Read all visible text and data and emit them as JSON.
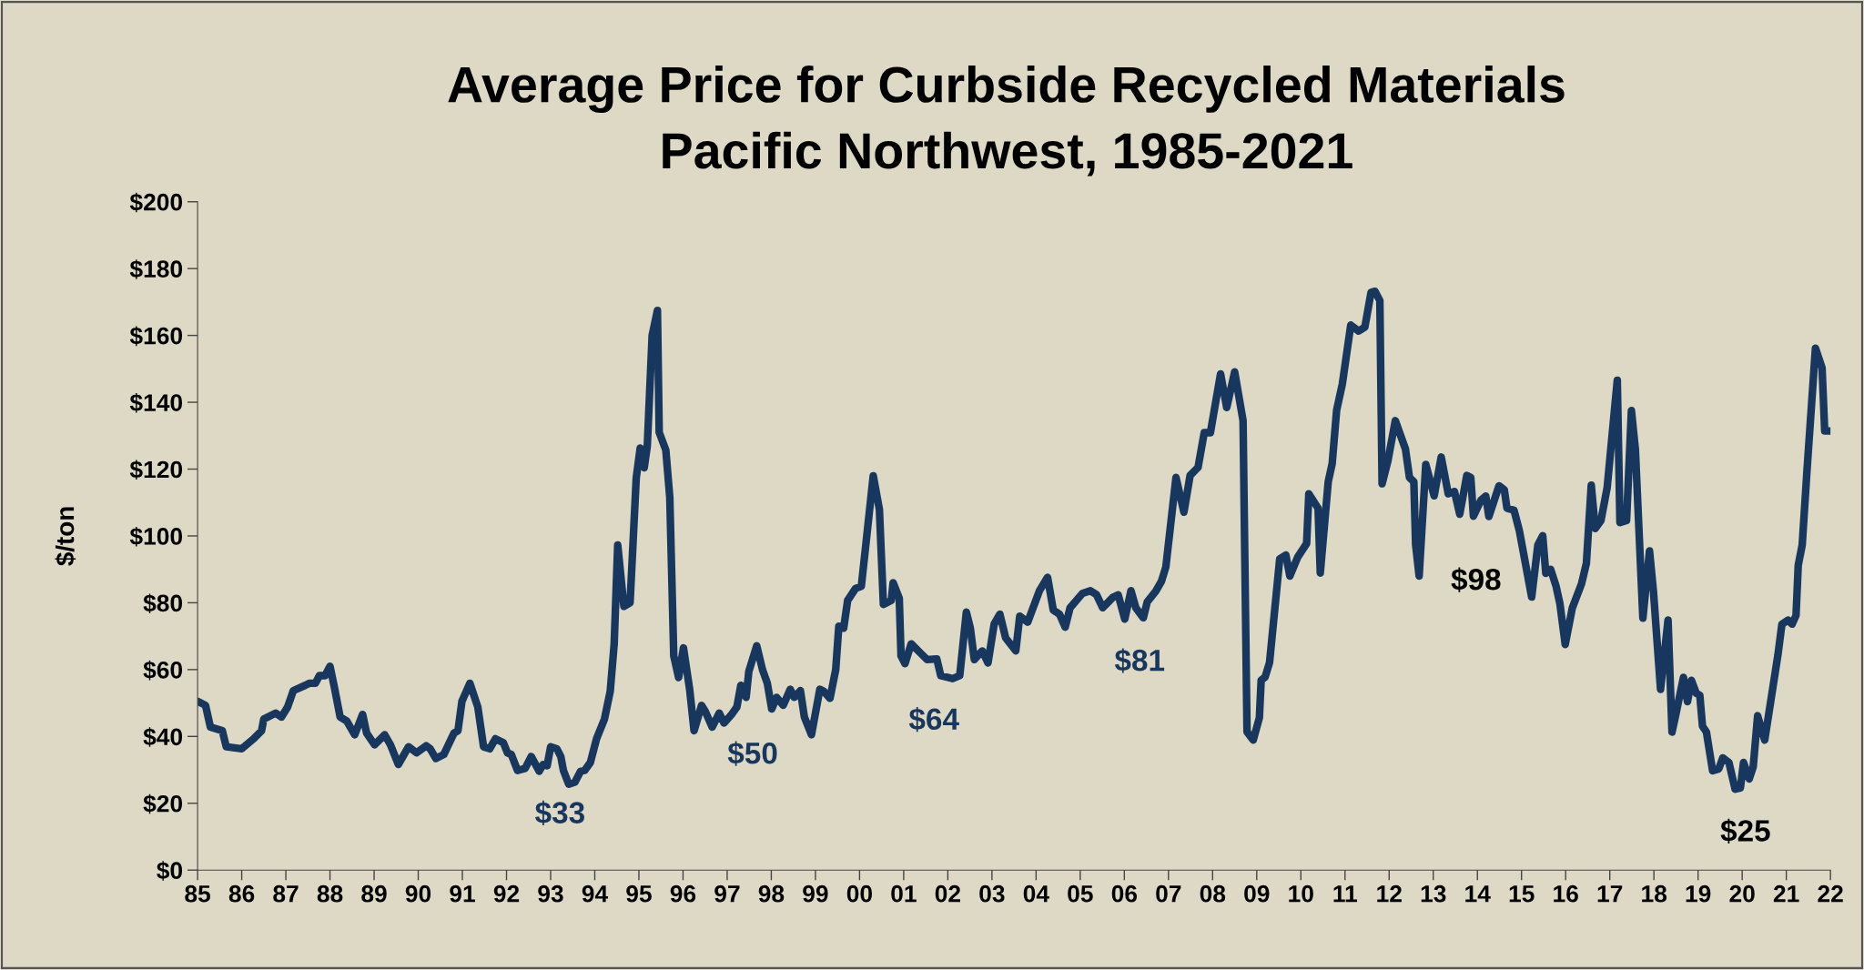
{
  "chart_data": {
    "type": "line",
    "title": "Average Price for Curbside Recycled Materials",
    "subtitle": "Pacific Northwest, 1985-2021",
    "ylabel": "$/ton",
    "annotations": [
      "$33",
      "$50",
      "$64",
      "$81",
      "$98",
      "$25"
    ],
    "series": [
      {
        "color": "#17375e",
        "x": [
          1985.0,
          1985.18,
          1985.29,
          1985.56,
          1985.65,
          1986.0,
          1986.27,
          1986.45,
          1986.5,
          1986.77,
          1986.9,
          1987.04,
          1987.17,
          1987.44,
          1987.53,
          1987.67,
          1987.76,
          1987.89,
          1988.0,
          1988.1,
          1988.23,
          1988.38,
          1988.56,
          1988.74,
          1988.83,
          1989.01,
          1989.24,
          1989.37,
          1989.55,
          1989.78,
          1989.96,
          1990.18,
          1990.27,
          1990.4,
          1990.58,
          1990.81,
          1990.9,
          1990.99,
          1991.17,
          1991.35,
          1991.48,
          1991.62,
          1991.75,
          1991.93,
          1992.02,
          1992.11,
          1992.25,
          1992.42,
          1992.56,
          1992.74,
          1992.83,
          1992.92,
          1993.0,
          1993.14,
          1993.23,
          1993.29,
          1993.41,
          1993.55,
          1993.68,
          1993.77,
          1993.9,
          1994.04,
          1994.22,
          1994.35,
          1994.44,
          1994.52,
          1994.66,
          1994.8,
          1994.94,
          1995.03,
          1995.12,
          1995.19,
          1995.3,
          1995.42,
          1995.46,
          1995.61,
          1995.7,
          1995.79,
          1995.9,
          1996.01,
          1996.15,
          1996.25,
          1996.42,
          1996.5,
          1996.66,
          1996.82,
          1996.93,
          1997.09,
          1997.22,
          1997.31,
          1997.43,
          1997.49,
          1997.67,
          1997.8,
          1997.91,
          1998.01,
          1998.12,
          1998.27,
          1998.43,
          1998.52,
          1998.66,
          1998.75,
          1998.91,
          1999.1,
          1999.19,
          1999.33,
          1999.46,
          1999.53,
          1999.64,
          1999.73,
          1999.91,
          2000.04,
          2000.18,
          2000.31,
          2000.45,
          2000.54,
          2000.72,
          2000.76,
          2000.9,
          2000.94,
          2001.03,
          2001.17,
          2001.4,
          2001.53,
          2001.75,
          2001.84,
          2002.11,
          2002.27,
          2002.42,
          2002.51,
          2002.6,
          2002.78,
          2002.91,
          2003.05,
          2003.18,
          2003.31,
          2003.54,
          2003.63,
          2003.81,
          2004.08,
          2004.26,
          2004.39,
          2004.53,
          2004.66,
          2004.77,
          2005.05,
          2005.23,
          2005.37,
          2005.51,
          2005.74,
          2005.86,
          2006.01,
          2006.15,
          2006.26,
          2006.43,
          2006.52,
          2006.71,
          2006.84,
          2006.94,
          2007.17,
          2007.35,
          2007.49,
          2007.67,
          2007.81,
          2007.95,
          2008.18,
          2008.32,
          2008.5,
          2008.69,
          2008.78,
          2008.92,
          2009.06,
          2009.1,
          2009.19,
          2009.29,
          2009.52,
          2009.66,
          2009.75,
          2009.93,
          2010.13,
          2010.18,
          2010.39,
          2010.44,
          2010.62,
          2010.71,
          2010.81,
          2010.94,
          2011.13,
          2011.31,
          2011.45,
          2011.59,
          2011.68,
          2011.79,
          2011.84,
          2011.97,
          2012.14,
          2012.37,
          2012.46,
          2012.56,
          2012.6,
          2012.68,
          2012.83,
          2013.02,
          2013.18,
          2013.34,
          2013.48,
          2013.6,
          2013.76,
          2013.85,
          2013.91,
          2014.08,
          2014.19,
          2014.26,
          2014.49,
          2014.61,
          2014.67,
          2014.83,
          2014.95,
          2015.23,
          2015.37,
          2015.48,
          2015.55,
          2015.66,
          2015.78,
          2015.87,
          2015.99,
          2016.15,
          2016.36,
          2016.47,
          2016.58,
          2016.67,
          2016.8,
          2016.94,
          2017.17,
          2017.23,
          2017.38,
          2017.49,
          2017.58,
          2017.75,
          2017.9,
          2017.99,
          2018.15,
          2018.32,
          2018.41,
          2018.5,
          2018.67,
          2018.76,
          2018.85,
          2018.96,
          2019.04,
          2019.1,
          2019.19,
          2019.33,
          2019.47,
          2019.56,
          2019.7,
          2019.84,
          2019.96,
          2020.03,
          2020.16,
          2020.25,
          2020.35,
          2020.51,
          2020.81,
          2020.9,
          2021.04,
          2021.13,
          2021.22,
          2021.27,
          2021.36,
          2021.47,
          2021.66,
          2021.81,
          2021.87,
          2021.99
        ],
        "values": [
          50.5,
          49.3,
          42.8,
          41.7,
          36.9,
          36.3,
          39.3,
          41.7,
          45.2,
          47,
          45.8,
          48.8,
          53.7,
          55.3,
          55.9,
          55.9,
          58.2,
          58.2,
          61,
          54.7,
          45.8,
          44.6,
          40.5,
          46.6,
          41,
          37.5,
          40.5,
          37.5,
          31.6,
          36.9,
          35.1,
          37.2,
          36.3,
          33.4,
          34.6,
          41,
          41.7,
          50.5,
          55.9,
          48.8,
          36.9,
          36.3,
          39.3,
          38.1,
          35.1,
          34.6,
          29.8,
          30.4,
          34,
          29.6,
          31.6,
          31.2,
          36.9,
          36.3,
          34,
          29.8,
          25.7,
          26.3,
          29.6,
          29.8,
          32.2,
          39.3,
          45.2,
          53.5,
          67.7,
          97.3,
          78.9,
          80,
          117.4,
          126.3,
          120.4,
          126.9,
          160,
          167.5,
          131,
          125.7,
          111.5,
          64.1,
          57.6,
          66.5,
          54.1,
          41.7,
          49.3,
          47.6,
          42.8,
          47,
          44,
          46.4,
          48.8,
          55.3,
          51.7,
          59.4,
          67.1,
          60,
          55.9,
          48.2,
          51.7,
          49.3,
          54.1,
          51.7,
          53.7,
          45.8,
          40.5,
          54.1,
          53.5,
          51.4,
          60,
          73,
          72.4,
          80.7,
          84.3,
          84.9,
          102,
          118,
          107.9,
          79.5,
          80.7,
          86,
          81.3,
          64.1,
          61.8,
          67.7,
          64.7,
          63,
          63.2,
          58.2,
          57.3,
          58.2,
          77.2,
          72.4,
          63,
          65.6,
          62,
          73.6,
          76.6,
          69.5,
          65.6,
          76,
          74.2,
          83.7,
          87.6,
          77.8,
          76.6,
          72.7,
          78.5,
          82.8,
          83.6,
          82.4,
          78.5,
          81.6,
          82.4,
          75.1,
          83.6,
          78.5,
          75.5,
          80.3,
          83.4,
          86.4,
          90.7,
          117.5,
          107.1,
          118.1,
          120.5,
          130.9,
          130.9,
          148.5,
          138.4,
          149.1,
          134.5,
          41.4,
          38.9,
          45.6,
          56.8,
          57.8,
          62.1,
          93.1,
          94.3,
          88,
          93.7,
          97.7,
          112.6,
          108.3,
          88.9,
          116.2,
          121.7,
          137.6,
          145.5,
          163.1,
          161.3,
          162.5,
          172.9,
          173.2,
          170.4,
          115.6,
          122.3,
          134.5,
          126,
          117.5,
          116.2,
          97.4,
          88,
          121.4,
          112,
          123.6,
          112.6,
          113.3,
          106.5,
          118.1,
          117.5,
          105.9,
          110.7,
          111.9,
          105.8,
          115,
          113.8,
          108.3,
          107.7,
          101.6,
          81.7,
          97.3,
          100.1,
          88.8,
          90,
          85.1,
          79.7,
          67.5,
          78.4,
          85.7,
          91.8,
          115.2,
          102.2,
          104.6,
          114.4,
          146.6,
          104,
          104.6,
          137.5,
          125.9,
          75.4,
          95.5,
          83.3,
          54.1,
          74.8,
          41.3,
          46.8,
          57.7,
          50.4,
          56.8,
          52.9,
          52.3,
          43.1,
          41.3,
          29.7,
          30.3,
          33.6,
          32.2,
          24.2,
          24.6,
          32.2,
          27.3,
          30.9,
          46.2,
          38.9,
          64.4,
          73.6,
          74.8,
          73.6,
          76.2,
          91.2,
          97.3,
          119.9,
          156.2,
          150.3,
          131.4,
          131.4
        ]
      }
    ],
    "xlim": [
      1985,
      2022
    ],
    "xticks": [
      {
        "value": 1985,
        "label": "85"
      },
      {
        "value": 1986,
        "label": "86"
      },
      {
        "value": 1987,
        "label": "87"
      },
      {
        "value": 1988,
        "label": "88"
      },
      {
        "value": 1989,
        "label": "89"
      },
      {
        "value": 1990,
        "label": "90"
      },
      {
        "value": 1991,
        "label": "91"
      },
      {
        "value": 1992,
        "label": "92"
      },
      {
        "value": 1993,
        "label": "93"
      },
      {
        "value": 1994,
        "label": "94"
      },
      {
        "value": 1995,
        "label": "95"
      },
      {
        "value": 1996,
        "label": "96"
      },
      {
        "value": 1997,
        "label": "97"
      },
      {
        "value": 1998,
        "label": "98"
      },
      {
        "value": 1999,
        "label": "99"
      },
      {
        "value": 2000,
        "label": "00"
      },
      {
        "value": 2001,
        "label": "01"
      },
      {
        "value": 2002,
        "label": "02"
      },
      {
        "value": 2003,
        "label": "03"
      },
      {
        "value": 2004,
        "label": "04"
      },
      {
        "value": 2005,
        "label": "05"
      },
      {
        "value": 2006,
        "label": "06"
      },
      {
        "value": 2007,
        "label": "07"
      },
      {
        "value": 2008,
        "label": "08"
      },
      {
        "value": 2009,
        "label": "09"
      },
      {
        "value": 2010,
        "label": "10"
      },
      {
        "value": 2011,
        "label": "11"
      },
      {
        "value": 2012,
        "label": "12"
      },
      {
        "value": 2013,
        "label": "13"
      },
      {
        "value": 2014,
        "label": "14"
      },
      {
        "value": 2015,
        "label": "15"
      },
      {
        "value": 2016,
        "label": "16"
      },
      {
        "value": 2017,
        "label": "17"
      },
      {
        "value": 2018,
        "label": "18"
      },
      {
        "value": 2019,
        "label": "19"
      },
      {
        "value": 2020,
        "label": "20"
      },
      {
        "value": 2021,
        "label": "21"
      },
      {
        "value": 2022,
        "label": "22"
      }
    ],
    "ylim": [
      0,
      200
    ],
    "yticks": [
      {
        "value": 0,
        "label": "$0"
      },
      {
        "value": 20,
        "label": "$20"
      },
      {
        "value": 40,
        "label": "$40"
      },
      {
        "value": 60,
        "label": "$60"
      },
      {
        "value": 80,
        "label": "$80"
      },
      {
        "value": 100,
        "label": "$100"
      },
      {
        "value": 120,
        "label": "$120"
      },
      {
        "value": 140,
        "label": "$140"
      },
      {
        "value": 160,
        "label": "$160"
      },
      {
        "value": 180,
        "label": "$180"
      },
      {
        "value": 200,
        "label": "$200"
      }
    ],
    "grid": false,
    "legend": false,
    "marker": "none",
    "line_style": "solid"
  }
}
